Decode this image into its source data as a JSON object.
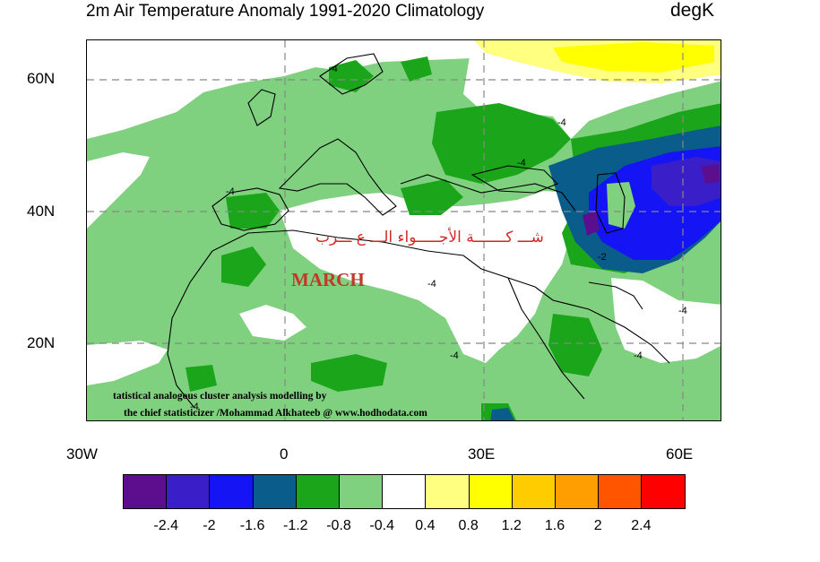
{
  "header": {
    "title": "2m Air Temperature Anomaly  1991-2020 Climatology",
    "units": "degK"
  },
  "map": {
    "lat_labels": [
      "60N",
      "40N",
      "20N"
    ],
    "lon_labels": [
      "30W",
      "0",
      "30E",
      "60E"
    ],
    "contour_labels": [
      "-4",
      "-4",
      "-4",
      "-4",
      "-4",
      "-2",
      "-4",
      "-4",
      "-4",
      "-4"
    ]
  },
  "overlay": {
    "arabic_text": "شـــ كـــــــة الأجـــــواء الـــ ع ـــرب",
    "month": "MARCH",
    "credit_line1": "tatistical analogous cluster analysis modelling by",
    "credit_line2": "the chief statisticizer /Mohammad Alkhateeb @ www.hodhodata.com"
  },
  "colorbar": {
    "colors": [
      "#5b0f8f",
      "#3a1fc8",
      "#1414f5",
      "#0a5c8a",
      "#1ba51b",
      "#7fd17f",
      "#ffffff",
      "#ffff80",
      "#ffff00",
      "#ffcc00",
      "#ff9e00",
      "#ff5500",
      "#ff0000"
    ],
    "labels": [
      "-2.4",
      "-2",
      "-1.6",
      "-1.2",
      "-0.8",
      "-0.4",
      "0.4",
      "0.8",
      "1.2",
      "1.6",
      "2",
      "2.4"
    ]
  }
}
